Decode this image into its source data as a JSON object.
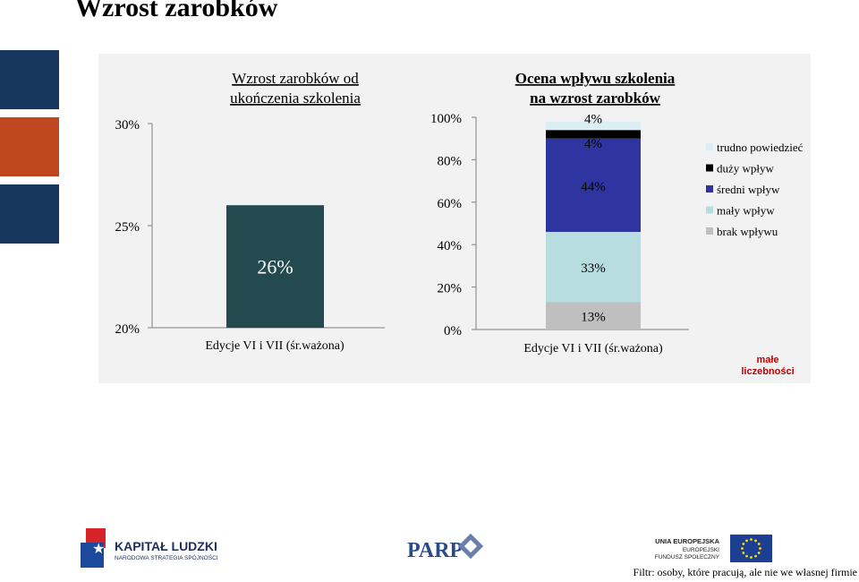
{
  "page": {
    "title": "Wzrost zarobków",
    "footer_note": "Filtr: osoby, które pracują, ale nie we własnej firmie",
    "side_bar_colors": [
      "#17375e",
      "#c0461f",
      "#17375e"
    ]
  },
  "annotation": {
    "text": "małe liczebności",
    "line1": "małe",
    "line2": "liczebności",
    "color": "#c00000"
  },
  "chart_data": [
    {
      "type": "bar",
      "title": "Wzrost zarobków od ukończenia szkolenia",
      "title_line1": "Wzrost zarobków od",
      "title_line2": "ukończenia szkolenia",
      "categories": [
        "Edycje VI i VII (śr.ważona)"
      ],
      "values": [
        26
      ],
      "value_labels": [
        "26%"
      ],
      "ylim": [
        20,
        30
      ],
      "yticks": [
        20,
        25,
        30
      ],
      "ytick_labels": [
        "20%",
        "25%",
        "30%"
      ],
      "bar_color": "#234a4f",
      "grid": false
    },
    {
      "type": "bar",
      "stacked": true,
      "title": "Ocena wpływu szkolenia na wzrost zarobków",
      "title_line1": "Ocena wpływu szkolenia",
      "title_line2": "na wzrost zarobków",
      "categories": [
        "Edycje VI i VII (śr.ważona)"
      ],
      "ylim": [
        0,
        100
      ],
      "yticks": [
        0,
        20,
        40,
        60,
        80,
        100
      ],
      "ytick_labels": [
        "0%",
        "20%",
        "40%",
        "60%",
        "80%",
        "100%"
      ],
      "grid": false,
      "legend_position": "right",
      "series": [
        {
          "name": "brak wpływu",
          "values": [
            13
          ],
          "label": "13%",
          "color": "#bfbfbf"
        },
        {
          "name": "mały wpływ",
          "values": [
            33
          ],
          "label": "33%",
          "color": "#b7dde0"
        },
        {
          "name": "średni wpływ",
          "values": [
            44
          ],
          "label": "44%",
          "color": "#2e35a0"
        },
        {
          "name": "duży wpływ",
          "values": [
            4
          ],
          "label": "4%",
          "color": "#000000"
        },
        {
          "name": "trudno powiedzieć",
          "values": [
            4
          ],
          "label": "4%",
          "color": "#daeef3"
        }
      ]
    }
  ],
  "logos": {
    "kapital": {
      "line1": "KAPITAŁ LUDZKI",
      "line2": "NARODOWA STRATEGIA SPÓJNOŚCI"
    },
    "parp": {
      "text": "PARP"
    },
    "ue": {
      "line1": "UNIA EUROPEJSKA",
      "line2": "EUROPEJSKI",
      "line3": "FUNDUSZ SPOŁECZNY",
      "flag_color": "#1c3f94",
      "star_color": "#ffdd00"
    }
  }
}
